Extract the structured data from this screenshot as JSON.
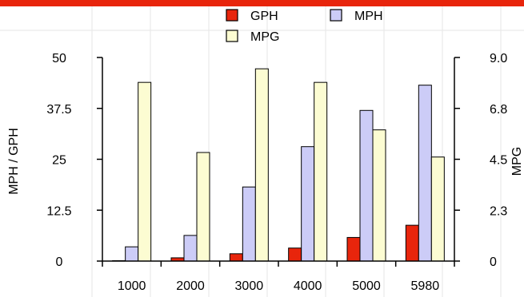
{
  "chart_data": {
    "type": "bar",
    "categories": [
      "1000",
      "2000",
      "3000",
      "4000",
      "5000",
      "5980"
    ],
    "series": [
      {
        "name": "GPH",
        "axis": "left",
        "color": "#e8250c",
        "values": [
          0.1,
          0.8,
          1.8,
          3.2,
          5.8,
          8.8
        ]
      },
      {
        "name": "MPH",
        "axis": "left",
        "color": "#ccccf7",
        "values": [
          3.5,
          6.3,
          18.2,
          28.1,
          37.0,
          43.2
        ]
      },
      {
        "name": "MPG",
        "axis": "right",
        "color": "#fcfcd2",
        "values": [
          7.9,
          4.8,
          8.5,
          7.9,
          5.8,
          4.6
        ]
      }
    ],
    "ylabel": "MPH / GPH",
    "y2label": "MPG",
    "ylim": [
      0,
      50
    ],
    "y2lim": [
      0,
      9.0
    ],
    "yticks": [
      "0",
      "12.5",
      "25",
      "37.5",
      "50"
    ],
    "y2ticks": [
      "0",
      "2.3",
      "4.5",
      "6.8",
      "9.0"
    ],
    "grid": "vertical",
    "legend_position": "top-center"
  }
}
